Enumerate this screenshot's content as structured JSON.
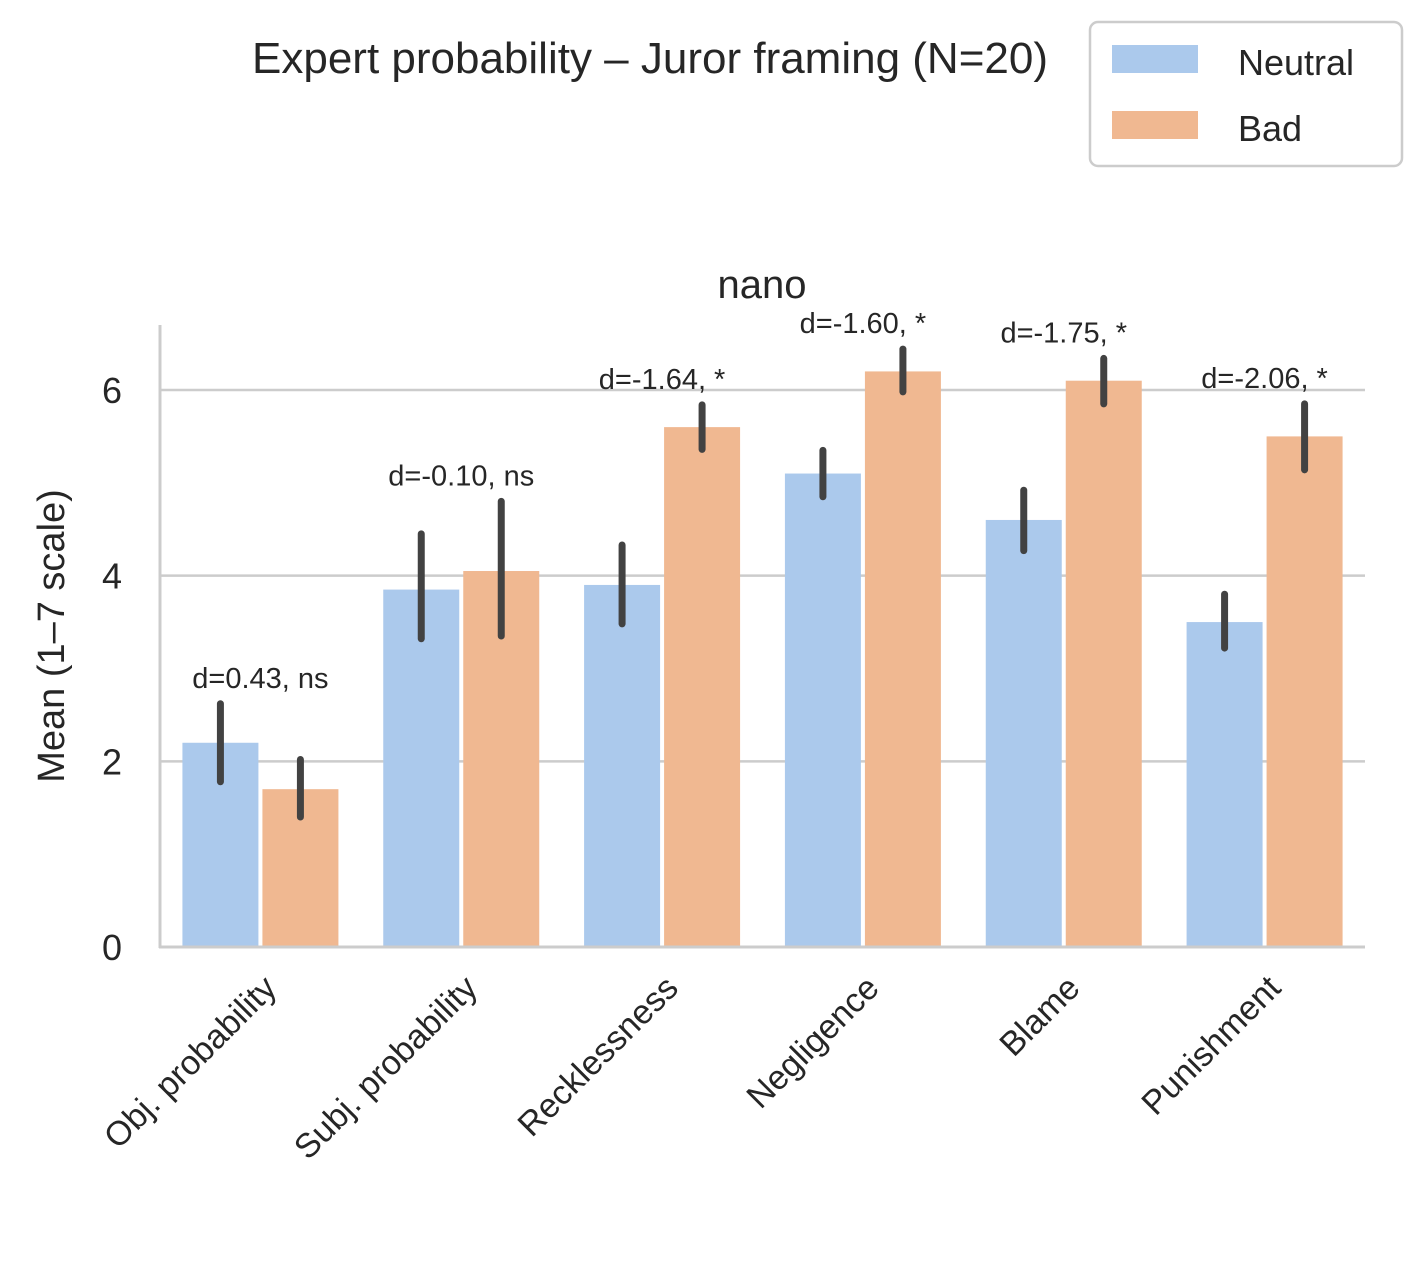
{
  "chart_data": {
    "type": "bar",
    "suptitle": "Expert probability – Juror framing (N=20)",
    "title": "nano",
    "xlabel": "",
    "ylabel": "Mean (1–7 scale)",
    "ylim": [
      0,
      6.7
    ],
    "yticks": [
      0,
      2,
      4,
      6
    ],
    "grid": "horizontal",
    "legend_position": "top-right",
    "categories": [
      "Obj. probability",
      "Subj. probability",
      "Recklessness",
      "Negligence",
      "Blame",
      "Punishment"
    ],
    "series": [
      {
        "name": "Neutral",
        "color": "#abc9ec",
        "values": [
          2.2,
          3.85,
          3.9,
          5.1,
          4.6,
          3.5
        ],
        "ci_low": [
          1.78,
          3.32,
          3.48,
          4.85,
          4.27,
          3.22
        ],
        "ci_high": [
          2.62,
          4.45,
          4.33,
          5.35,
          4.92,
          3.8
        ]
      },
      {
        "name": "Bad",
        "color": "#f0b891",
        "values": [
          1.7,
          4.05,
          5.6,
          6.2,
          6.1,
          5.5
        ],
        "ci_low": [
          1.4,
          3.35,
          5.36,
          5.98,
          5.85,
          5.14
        ],
        "ci_high": [
          2.02,
          4.8,
          5.84,
          6.44,
          6.34,
          5.85
        ]
      }
    ],
    "annotations": [
      "d=0.43, ns",
      "d=-0.10, ns",
      "d=-1.64, *",
      "d=-1.60, *",
      "d=-1.75, *",
      "d=-2.06, *"
    ]
  }
}
